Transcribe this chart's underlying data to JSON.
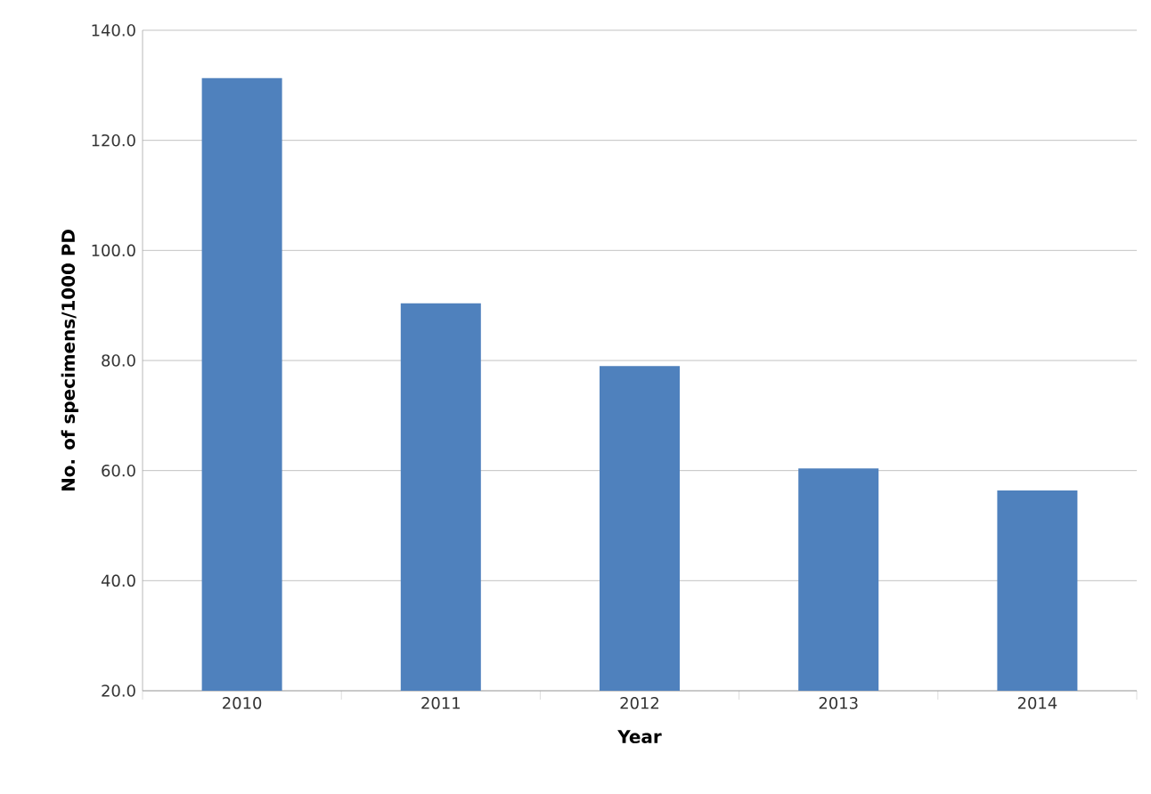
{
  "chart_data": {
    "type": "bar",
    "xlabel": "Year",
    "ylabel": "No. of specimens/1000 PD",
    "categories": [
      "2010",
      "2011",
      "2012",
      "2013",
      "2014"
    ],
    "values": [
      131.3,
      90.4,
      79.0,
      60.4,
      56.4
    ],
    "color": "#4f81bd",
    "ylim": [
      20,
      140
    ],
    "yticks": [
      {
        "value": 20,
        "label": "20.0"
      },
      {
        "value": 40,
        "label": "40.0"
      },
      {
        "value": 60,
        "label": "60.0"
      },
      {
        "value": 80,
        "label": "80.0"
      },
      {
        "value": 100,
        "label": "100.0"
      },
      {
        "value": 120,
        "label": "120.0"
      },
      {
        "value": 140,
        "label": "140.0"
      }
    ],
    "grid": "y"
  }
}
